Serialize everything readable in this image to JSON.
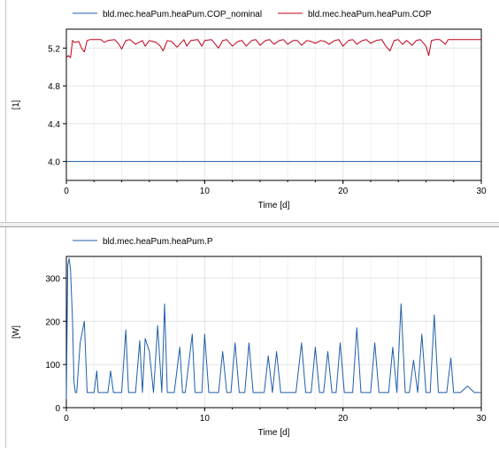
{
  "chart_data": [
    {
      "type": "line",
      "xlabel": "Time [d]",
      "ylabel": "[1]",
      "xlim": [
        0,
        30
      ],
      "ylim": [
        3.8,
        5.4
      ],
      "xticks": [
        0,
        10,
        20,
        30
      ],
      "yticks": [
        4.0,
        4.4,
        4.8,
        5.2
      ],
      "ytick_labels": [
        "4.0",
        "4.4",
        "4.8",
        "5.2"
      ],
      "grid": true,
      "legend_position": "top",
      "series": [
        {
          "name": "bld.mec.heaPum.heaPum.COP_nominal",
          "color": "#1f5fa8",
          "x": [
            0,
            30
          ],
          "y": [
            4.0,
            4.0
          ]
        },
        {
          "name": "bld.mec.heaPum.heaPum.COP",
          "color": "#c0001a",
          "x": [
            0.0,
            0.15,
            0.3,
            0.45,
            0.6,
            0.9,
            1.1,
            1.3,
            1.5,
            1.7,
            2.0,
            2.5,
            2.75,
            3.0,
            3.5,
            3.8,
            4.0,
            4.3,
            4.6,
            5.0,
            5.5,
            5.7,
            6.0,
            6.5,
            6.8,
            7.0,
            7.3,
            7.6,
            8.0,
            8.5,
            8.7,
            9.0,
            9.5,
            9.8,
            10.0,
            10.5,
            11.0,
            11.3,
            11.6,
            12.0,
            12.4,
            12.7,
            13.0,
            13.4,
            13.7,
            14.0,
            14.4,
            14.7,
            15.0,
            15.4,
            15.7,
            16.0,
            16.4,
            16.7,
            17.0,
            17.4,
            17.7,
            18.0,
            18.4,
            18.7,
            19.0,
            19.4,
            19.7,
            20.0,
            20.4,
            20.7,
            21.0,
            21.4,
            21.7,
            22.0,
            22.4,
            22.8,
            23.1,
            23.4,
            23.7,
            24.0,
            24.3,
            24.6,
            25.0,
            25.3,
            25.6,
            26.0,
            26.2,
            26.4,
            26.7,
            27.0,
            27.4,
            27.6,
            28.0,
            28.5,
            29.0,
            29.5,
            30.0
          ],
          "y": [
            5.1,
            5.12,
            5.1,
            5.28,
            5.26,
            5.27,
            5.2,
            5.16,
            5.28,
            5.29,
            5.29,
            5.29,
            5.26,
            5.28,
            5.29,
            5.24,
            5.19,
            5.28,
            5.29,
            5.24,
            5.28,
            5.22,
            5.28,
            5.26,
            5.22,
            5.17,
            5.28,
            5.27,
            5.21,
            5.29,
            5.22,
            5.28,
            5.29,
            5.22,
            5.28,
            5.29,
            5.2,
            5.28,
            5.29,
            5.22,
            5.27,
            5.28,
            5.22,
            5.28,
            5.29,
            5.23,
            5.28,
            5.29,
            5.24,
            5.28,
            5.29,
            5.24,
            5.28,
            5.28,
            5.23,
            5.28,
            5.27,
            5.25,
            5.28,
            5.27,
            5.24,
            5.28,
            5.29,
            5.22,
            5.28,
            5.29,
            5.24,
            5.28,
            5.29,
            5.25,
            5.28,
            5.29,
            5.22,
            5.17,
            5.28,
            5.29,
            5.24,
            5.28,
            5.23,
            5.28,
            5.29,
            5.22,
            5.12,
            5.28,
            5.29,
            5.29,
            5.24,
            5.29,
            5.29,
            5.29,
            5.29,
            5.29,
            5.29
          ]
        }
      ]
    },
    {
      "type": "line",
      "xlabel": "Time [d]",
      "ylabel": "[W]",
      "xlim": [
        0,
        30
      ],
      "ylim": [
        0,
        350
      ],
      "xticks": [
        0,
        10,
        20,
        30
      ],
      "yticks": [
        0,
        100,
        200,
        300
      ],
      "ytick_labels": [
        "0",
        "100",
        "200",
        "300"
      ],
      "grid": true,
      "legend_position": "top",
      "series": [
        {
          "name": "bld.mec.heaPum.heaPum.P",
          "color": "#1f5fa8",
          "x": [
            0.0,
            0.1,
            0.2,
            0.3,
            0.45,
            0.55,
            0.65,
            0.75,
            1.0,
            1.3,
            1.5,
            1.7,
            2.0,
            2.2,
            2.3,
            2.5,
            3.0,
            3.2,
            3.4,
            4.0,
            4.3,
            4.5,
            5.0,
            5.3,
            5.5,
            5.7,
            6.0,
            6.3,
            6.6,
            6.9,
            7.1,
            7.3,
            7.5,
            7.8,
            8.2,
            8.4,
            8.6,
            9.1,
            9.3,
            9.5,
            9.8,
            10.0,
            10.3,
            10.5,
            11.0,
            11.3,
            11.6,
            11.9,
            12.2,
            12.5,
            12.9,
            13.2,
            13.5,
            13.9,
            14.3,
            14.6,
            14.9,
            15.2,
            15.5,
            15.8,
            16.3,
            16.6,
            17.0,
            17.3,
            17.7,
            18.0,
            18.3,
            18.6,
            18.9,
            19.2,
            19.5,
            19.8,
            20.1,
            20.4,
            20.7,
            21.0,
            21.3,
            21.6,
            22.0,
            22.3,
            22.6,
            23.0,
            23.3,
            23.6,
            23.9,
            24.2,
            24.5,
            24.8,
            25.1,
            25.4,
            25.7,
            26.0,
            26.3,
            26.6,
            26.9,
            27.2,
            27.5,
            27.8,
            28.0,
            28.2,
            28.5,
            29.0,
            29.5,
            30.0
          ],
          "y": [
            20,
            330,
            345,
            320,
            200,
            60,
            35,
            35,
            150,
            200,
            35,
            35,
            35,
            85,
            35,
            35,
            35,
            85,
            35,
            35,
            180,
            35,
            35,
            155,
            35,
            160,
            130,
            35,
            190,
            35,
            240,
            35,
            35,
            35,
            140,
            35,
            35,
            170,
            35,
            35,
            35,
            170,
            35,
            35,
            35,
            130,
            35,
            35,
            150,
            35,
            35,
            150,
            35,
            35,
            35,
            120,
            35,
            130,
            35,
            35,
            35,
            35,
            150,
            35,
            35,
            140,
            35,
            35,
            130,
            35,
            35,
            150,
            35,
            35,
            35,
            185,
            35,
            35,
            35,
            150,
            35,
            35,
            35,
            140,
            35,
            240,
            35,
            35,
            110,
            35,
            170,
            35,
            35,
            215,
            35,
            35,
            35,
            115,
            35,
            35,
            35,
            50,
            35,
            35
          ]
        }
      ]
    }
  ]
}
